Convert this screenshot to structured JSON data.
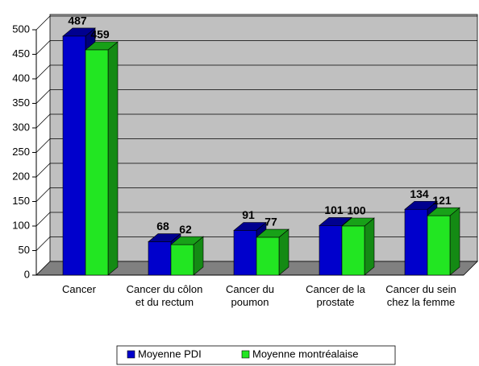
{
  "chart_data": {
    "type": "bar",
    "categories": [
      "Cancer",
      "Cancer du côlon et du rectum",
      "Cancer du poumon",
      "Cancer de la prostate",
      "Cancer du sein chez la femme"
    ],
    "series": [
      {
        "name": "Moyenne PDI",
        "color": "#0000cc",
        "values": [
          487,
          68,
          91,
          101,
          134
        ]
      },
      {
        "name": "Moyenne montréalaise",
        "color": "#22e622",
        "values": [
          459,
          62,
          77,
          100,
          121
        ]
      }
    ],
    "ylim": [
      0,
      500
    ],
    "yticks": [
      0,
      50,
      100,
      150,
      200,
      250,
      300,
      350,
      400,
      450,
      500
    ],
    "grid": true,
    "legend": "bottom"
  }
}
